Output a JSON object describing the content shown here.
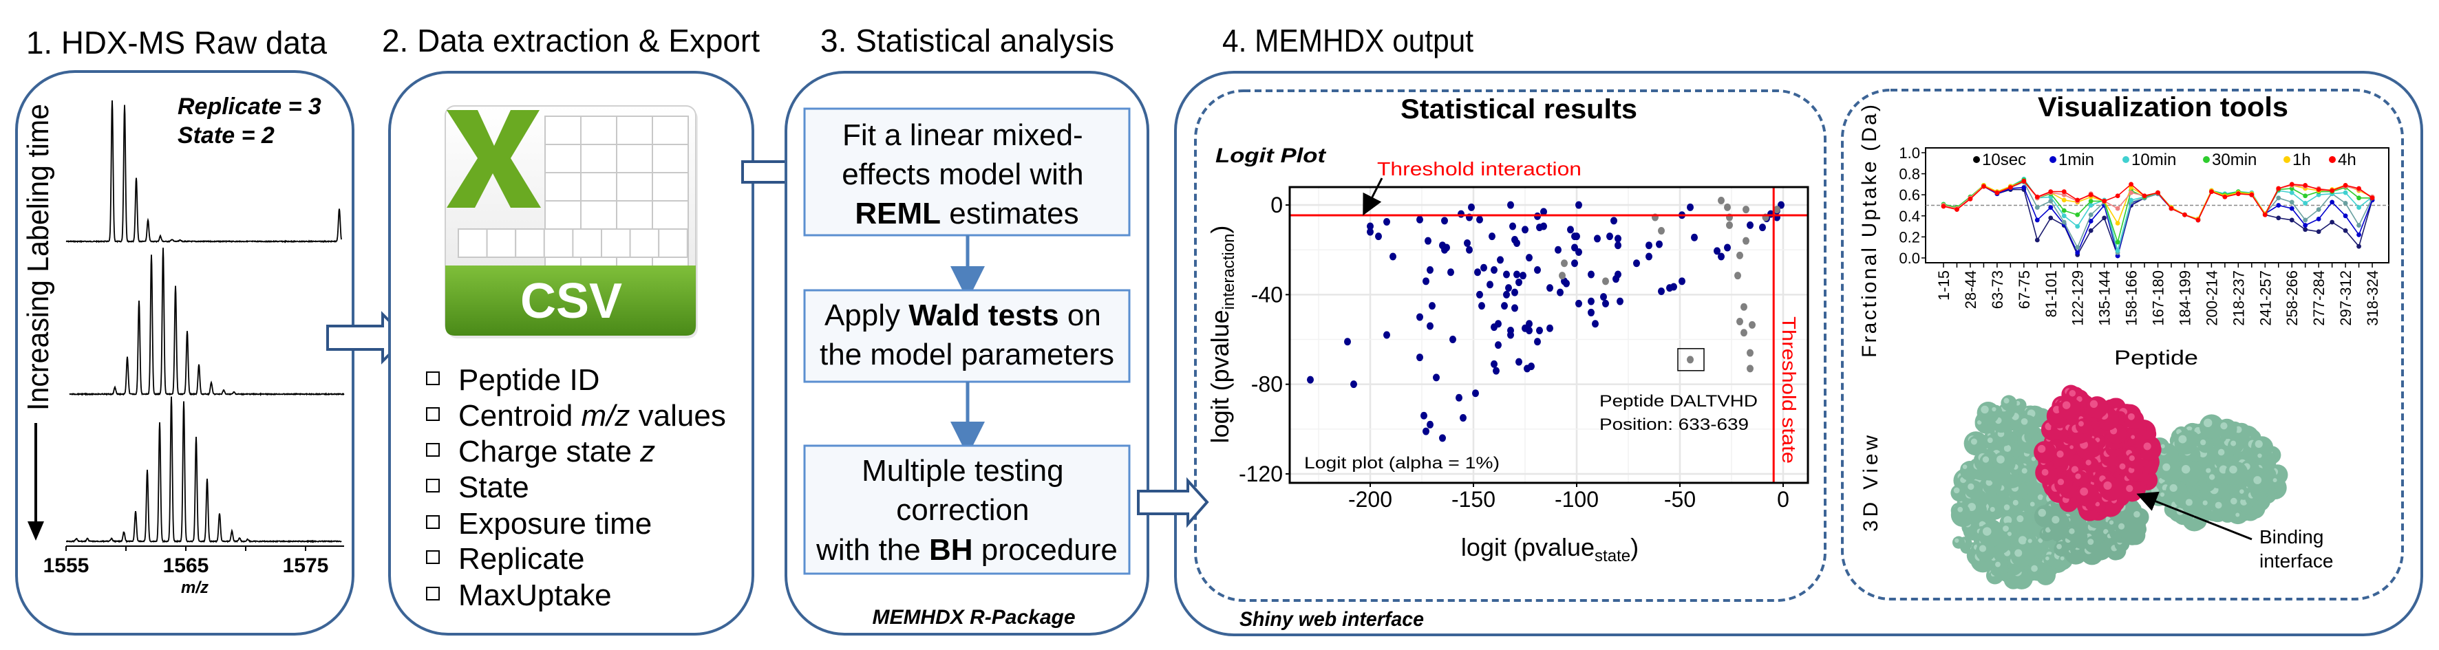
{
  "colors": {
    "box": "#3c6496",
    "step_fill": "#f5f8fc",
    "step_stroke": "#5b8fd0",
    "threshold": "#ff0000",
    "csv_green": "#5a9e1f",
    "protein_green": "#7fb89d",
    "protein_pink": "#d81b60"
  },
  "panel1": {
    "title": "1. HDX-MS Raw data",
    "replicate": "Replicate = 3",
    "state": "State = 2",
    "side_label": "Increasing Labeling time",
    "axis_ticks": [
      "1555",
      "1565",
      "1575"
    ],
    "axis_label": "m/z"
  },
  "panel2": {
    "title": "2. Data extraction & Export",
    "icon": "csv-file-icon",
    "icon_label": "CSV",
    "items": [
      {
        "pre": "Peptide ID",
        "em": "",
        "post": ""
      },
      {
        "pre": "Centroid ",
        "em": "m/z",
        "post": " values"
      },
      {
        "pre": "Charge state ",
        "em": "z",
        "post": ""
      },
      {
        "pre": "State",
        "em": "",
        "post": ""
      },
      {
        "pre": "Exposure time",
        "em": "",
        "post": ""
      },
      {
        "pre": "Replicate",
        "em": "",
        "post": ""
      },
      {
        "pre": "MaxUptake",
        "em": "",
        "post": ""
      }
    ]
  },
  "panel3": {
    "title": "3. Statistical analysis",
    "step1": {
      "l1": "Fit a linear mixed-",
      "l2": "effects model with",
      "l3b": "REML",
      "l3": " estimates"
    },
    "step2": {
      "l1a": "Apply ",
      "l1b": "Wald tests",
      "l1c": " on",
      "l2": "the model parameters"
    },
    "step3": {
      "l1": "Multiple testing",
      "l2": "correction",
      "l3a": "with the ",
      "l3b": "BH",
      "l3c": " procedure"
    },
    "footer": "MEMHDX R-Package"
  },
  "panel4": {
    "title": "4. MEMHDX output",
    "footer": "Shiny web interface",
    "stat_title": "Statistical results",
    "vis_title": "Visualization tools",
    "view3d_label": "3D View",
    "binding_l1": "Binding",
    "binding_l2": "interface"
  },
  "chart_data": [
    {
      "type": "scatter",
      "title": "Logit Plot",
      "xlabel_main": "logit (pvalue",
      "xlabel_sub": "state",
      "xlabel_end": ")",
      "ylabel_main": "logit (pvalue",
      "ylabel_sub": "interaction",
      "ylabel_end": ")",
      "xlim": [
        -239,
        12
      ],
      "ylim": [
        -124,
        8
      ],
      "xticks": [
        -200,
        -150,
        -100,
        -50,
        0
      ],
      "yticks": [
        0,
        -40,
        -80,
        -120
      ],
      "grid": true,
      "threshold_interaction": {
        "value": -4.6,
        "label": "Threshold interaction"
      },
      "threshold_state": {
        "value": -4.6,
        "label": "Threshold state"
      },
      "annotation": {
        "line1": "Peptide DALTVHD",
        "line2": "Position: 633-639",
        "point": [
          -45,
          -69
        ]
      },
      "note": "Logit plot (alpha = 1%)",
      "series": [
        {
          "color": "#00008b",
          "points": [
            [
              -229,
              -78
            ],
            [
              -211,
              -61
            ],
            [
              -208,
              -80
            ],
            [
              -200,
              -9.5
            ],
            [
              -200,
              -12
            ],
            [
              -196,
              -14
            ],
            [
              -192,
              -7.5
            ],
            [
              -189,
              -23
            ],
            [
              -192,
              -58
            ],
            [
              -176,
              -50
            ],
            [
              -176,
              -6.5
            ],
            [
              -176,
              -68
            ],
            [
              -174,
              -94
            ],
            [
              -173,
              -101
            ],
            [
              -173,
              -34
            ],
            [
              -172,
              -16
            ],
            [
              -171,
              -98
            ],
            [
              -171,
              -54
            ],
            [
              -171,
              -29
            ],
            [
              -170,
              -45
            ],
            [
              -168,
              -77
            ],
            [
              -165,
              -18
            ],
            [
              -165,
              -104
            ],
            [
              -164,
              -7
            ],
            [
              -164,
              -20
            ],
            [
              -163,
              -19
            ],
            [
              -161,
              -30
            ],
            [
              -160,
              -60
            ],
            [
              -157,
              -86
            ],
            [
              -156,
              -4
            ],
            [
              -155,
              -95
            ],
            [
              -153,
              -17
            ],
            [
              -152,
              -5.5
            ],
            [
              -152,
              -20
            ],
            [
              -151,
              -1
            ],
            [
              -149,
              -84
            ],
            [
              -148,
              -30
            ],
            [
              -147,
              -40
            ],
            [
              -147,
              -6.5
            ],
            [
              -146,
              -45
            ],
            [
              -145,
              -28
            ],
            [
              -142,
              -35.5
            ],
            [
              -141,
              -14
            ],
            [
              -140,
              -54.5
            ],
            [
              -140,
              -29
            ],
            [
              -140,
              -71
            ],
            [
              -139,
              -74
            ],
            [
              -138,
              -53
            ],
            [
              -138,
              -62.5
            ],
            [
              -137,
              -24.5
            ],
            [
              -135,
              -45
            ],
            [
              -134,
              -31
            ],
            [
              -134,
              -40
            ],
            [
              -133,
              -37
            ],
            [
              -132,
              -56
            ],
            [
              -132,
              -58
            ],
            [
              -132,
              0
            ],
            [
              -131,
              -9.5
            ],
            [
              -130,
              -15.5
            ],
            [
              -130,
              -46
            ],
            [
              -130,
              -39
            ],
            [
              -129,
              -17
            ],
            [
              -129,
              -31
            ],
            [
              -128,
              -34.5
            ],
            [
              -128,
              -70
            ],
            [
              -126,
              -31.5
            ],
            [
              -125,
              -11
            ],
            [
              -125,
              -55
            ],
            [
              -124,
              -73
            ],
            [
              -123,
              -23.5
            ],
            [
              -123,
              -53
            ],
            [
              -123,
              -56
            ],
            [
              -122,
              -72
            ],
            [
              -119,
              -5
            ],
            [
              -119,
              -29
            ],
            [
              -119,
              -61
            ],
            [
              -118,
              -56
            ],
            [
              -118,
              -10
            ],
            [
              -116,
              -3
            ],
            [
              -116,
              -9.5
            ],
            [
              -113,
              -37
            ],
            [
              -113,
              -55
            ],
            [
              -109,
              -20
            ],
            [
              -108,
              -39
            ],
            [
              -106,
              -34
            ],
            [
              -105,
              -35
            ],
            [
              -103,
              -11
            ],
            [
              -101,
              -14
            ],
            [
              -101,
              -19
            ],
            [
              -101,
              -26
            ],
            [
              -100,
              -14
            ],
            [
              -99,
              0
            ],
            [
              -99,
              -21
            ],
            [
              -99,
              -44
            ],
            [
              -93,
              -31
            ],
            [
              -93,
              -43
            ],
            [
              -93,
              -48
            ],
            [
              -91,
              -53
            ],
            [
              -90,
              -15
            ],
            [
              -87,
              -41
            ],
            [
              -86,
              -44
            ],
            [
              -84,
              -14
            ],
            [
              -82,
              -7
            ],
            [
              -81,
              -33
            ],
            [
              -80,
              -15
            ],
            [
              -80,
              -18
            ],
            [
              -80,
              -31
            ],
            [
              -79,
              -43
            ],
            [
              -71,
              -26
            ],
            [
              -65,
              -18
            ],
            [
              -65,
              -23
            ],
            [
              -60,
              -17.5
            ],
            [
              -59,
              -38.5
            ],
            [
              -55,
              -37
            ],
            [
              -53,
              -36.5
            ],
            [
              -49,
              -4.5
            ],
            [
              -49,
              -34
            ],
            [
              -45,
              -1
            ],
            [
              -43,
              -14.5
            ],
            [
              -32,
              -20.5
            ],
            [
              -30,
              -23
            ],
            [
              -27,
              -19
            ],
            [
              -16,
              -9
            ],
            [
              -10,
              -10
            ],
            [
              -8,
              -6
            ],
            [
              -6,
              -4
            ],
            [
              -3,
              -5.5
            ],
            [
              -3,
              -2.5
            ],
            [
              -1,
              0
            ]
          ]
        },
        {
          "color": "#808080",
          "points": [
            [
              -30,
              2
            ],
            [
              -27,
              -1
            ],
            [
              -26,
              -5.5
            ],
            [
              -26,
              -9
            ],
            [
              -18,
              -2
            ],
            [
              -18,
              -16
            ],
            [
              -21,
              -22.5
            ],
            [
              -22,
              -31.5
            ],
            [
              -19,
              -45.5
            ],
            [
              -21,
              -52
            ],
            [
              -19,
              -57
            ],
            [
              -15,
              -53.5
            ],
            [
              -16,
              -66
            ],
            [
              -16,
              -73
            ],
            [
              -62,
              -5.5
            ],
            [
              -59,
              -11.5
            ],
            [
              -106,
              -26
            ],
            [
              -107,
              -31.5
            ],
            [
              -86,
              -34
            ],
            [
              -45,
              -69
            ],
            [
              -8.5,
              -5.5
            ],
            [
              -3,
              -2
            ]
          ]
        }
      ]
    },
    {
      "type": "line",
      "xlabel": "Peptide",
      "ylabel": "Fractional Uptake (Da)",
      "ylim": [
        0,
        1
      ],
      "yticks": [
        "0.0",
        "0.2",
        "0.4",
        "0.6",
        "0.8",
        "1.0"
      ],
      "reference_line": 0.5,
      "legend_placement": "top",
      "categories": [
        "1-15",
        "",
        "28-44",
        "",
        "63-73",
        "",
        "67-75",
        "",
        "81-101",
        "",
        "122-129",
        "",
        "135-144",
        "",
        "158-166",
        "",
        "167-180",
        "",
        "184-199",
        "",
        "200-214",
        "",
        "218-237",
        "",
        "241-257",
        "",
        "258-266",
        "",
        "277-284",
        "",
        "297-312",
        "",
        "318-324"
      ],
      "series": [
        {
          "name": "10sec",
          "color": "#1a1a6e",
          "legend_color": "#000000",
          "values": [
            0.5,
            0.47,
            0.57,
            0.68,
            0.61,
            0.65,
            0.65,
            0.17,
            0.38,
            0.31,
            0.03,
            0.26,
            0.38,
            0.02,
            0.5,
            0.57,
            0.61,
            0.47,
            0.41,
            0.36,
            0.63,
            0.59,
            0.62,
            0.6,
            0.41,
            0.38,
            0.36,
            0.27,
            0.25,
            0.34,
            0.26,
            0.11,
            0.55
          ]
        },
        {
          "name": "1min",
          "color": "#0000cc",
          "legend_color": "#0000cc",
          "values": [
            0.5,
            0.47,
            0.57,
            0.68,
            0.61,
            0.66,
            0.67,
            0.36,
            0.48,
            0.32,
            0.05,
            0.35,
            0.5,
            0.02,
            0.52,
            0.57,
            0.61,
            0.47,
            0.41,
            0.36,
            0.63,
            0.59,
            0.62,
            0.6,
            0.42,
            0.5,
            0.47,
            0.31,
            0.37,
            0.53,
            0.4,
            0.22,
            0.55
          ]
        },
        {
          "color": "#6aa0a0",
          "values": [
            0.51,
            0.48,
            0.58,
            0.69,
            0.62,
            0.67,
            0.72,
            0.48,
            0.54,
            0.34,
            0.1,
            0.41,
            0.53,
            0.05,
            0.53,
            0.57,
            0.61,
            0.48,
            0.41,
            0.37,
            0.63,
            0.6,
            0.62,
            0.61,
            0.42,
            0.57,
            0.53,
            0.36,
            0.46,
            0.61,
            0.52,
            0.31,
            0.57
          ]
        },
        {
          "name": "10min",
          "color": "#40d0d0",
          "legend_color": "#40d0d0",
          "values": [
            0.51,
            0.48,
            0.58,
            0.69,
            0.62,
            0.68,
            0.75,
            0.57,
            0.58,
            0.4,
            0.3,
            0.5,
            0.55,
            0.07,
            0.55,
            0.58,
            0.62,
            0.48,
            0.41,
            0.37,
            0.64,
            0.61,
            0.63,
            0.62,
            0.42,
            0.64,
            0.62,
            0.52,
            0.6,
            0.61,
            0.62,
            0.48,
            0.58
          ]
        },
        {
          "name": "30min",
          "color": "#2ecc2e",
          "legend_color": "#2ecc2e",
          "values": [
            0.51,
            0.48,
            0.58,
            0.69,
            0.63,
            0.68,
            0.74,
            0.57,
            0.61,
            0.45,
            0.41,
            0.54,
            0.54,
            0.15,
            0.64,
            0.58,
            0.62,
            0.48,
            0.41,
            0.37,
            0.64,
            0.6,
            0.63,
            0.61,
            0.42,
            0.65,
            0.66,
            0.59,
            0.63,
            0.63,
            0.67,
            0.57,
            0.57
          ]
        },
        {
          "name": "1h",
          "color": "#ffd000",
          "legend_color": "#ffd000",
          "values": [
            0.5,
            0.47,
            0.57,
            0.69,
            0.63,
            0.68,
            0.73,
            0.57,
            0.62,
            0.55,
            0.53,
            0.58,
            0.54,
            0.33,
            0.67,
            0.59,
            0.62,
            0.48,
            0.41,
            0.37,
            0.64,
            0.59,
            0.62,
            0.61,
            0.42,
            0.66,
            0.69,
            0.66,
            0.64,
            0.65,
            0.69,
            0.64,
            0.58
          ]
        },
        {
          "color": "#f08080",
          "values": [
            0.5,
            0.47,
            0.57,
            0.68,
            0.62,
            0.67,
            0.73,
            0.57,
            0.62,
            0.6,
            0.54,
            0.61,
            0.54,
            0.47,
            0.62,
            0.59,
            0.62,
            0.47,
            0.41,
            0.36,
            0.63,
            0.58,
            0.61,
            0.6,
            0.41,
            0.66,
            0.69,
            0.68,
            0.66,
            0.64,
            0.68,
            0.65,
            0.58
          ]
        },
        {
          "name": "4h",
          "color": "#ff0000",
          "legend_color": "#ff0000",
          "values": [
            0.49,
            0.46,
            0.56,
            0.68,
            0.62,
            0.67,
            0.73,
            0.58,
            0.63,
            0.63,
            0.55,
            0.6,
            0.54,
            0.59,
            0.7,
            0.59,
            0.62,
            0.47,
            0.41,
            0.36,
            0.63,
            0.58,
            0.61,
            0.6,
            0.41,
            0.66,
            0.7,
            0.69,
            0.65,
            0.64,
            0.69,
            0.66,
            0.57
          ]
        }
      ]
    }
  ]
}
